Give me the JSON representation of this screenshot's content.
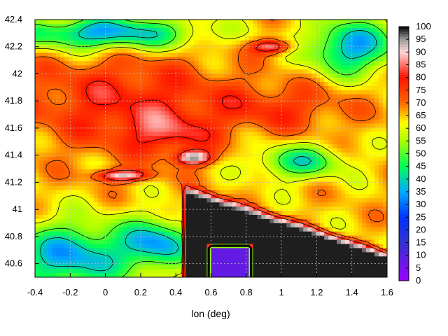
{
  "chart_data": {
    "type": "heatmap",
    "title": "",
    "xlabel": "lon (deg)",
    "ylabel": "",
    "xlim": [
      -0.4,
      1.6
    ],
    "ylim": [
      40.5,
      42.4
    ],
    "x_ticks": [
      "-0.4",
      "-0.2",
      "0",
      "0.2",
      "0.4",
      "0.6",
      "0.8",
      "1",
      "1.2",
      "1.4",
      "1.6"
    ],
    "y_ticks": [
      "42.4",
      "42.2",
      "42",
      "41.8",
      "41.6",
      "41.4",
      "41.2",
      "41",
      "40.8",
      "40.6"
    ],
    "colorbar": {
      "range": [
        0,
        100
      ],
      "ticks": [
        "100",
        "95",
        "90",
        "85",
        "80",
        "75",
        "70",
        "65",
        "60",
        "55",
        "50",
        "45",
        "40",
        "35",
        "30",
        "25",
        "20",
        "15",
        "10",
        "5",
        "0"
      ],
      "stops": [
        {
          "v": 0,
          "c": "#9900ff"
        },
        {
          "v": 15,
          "c": "#3333cc"
        },
        {
          "v": 25,
          "c": "#0033ff"
        },
        {
          "v": 35,
          "c": "#00aaff"
        },
        {
          "v": 45,
          "c": "#00ff55"
        },
        {
          "v": 55,
          "c": "#aaff00"
        },
        {
          "v": 62,
          "c": "#ffff00"
        },
        {
          "v": 70,
          "c": "#ff6600"
        },
        {
          "v": 80,
          "c": "#ff1100"
        },
        {
          "v": 90,
          "c": "#ffd8d8"
        },
        {
          "v": 95,
          "c": "#9a9a9a"
        },
        {
          "v": 100,
          "c": "#000000"
        }
      ]
    },
    "grid": true,
    "contours": true
  }
}
